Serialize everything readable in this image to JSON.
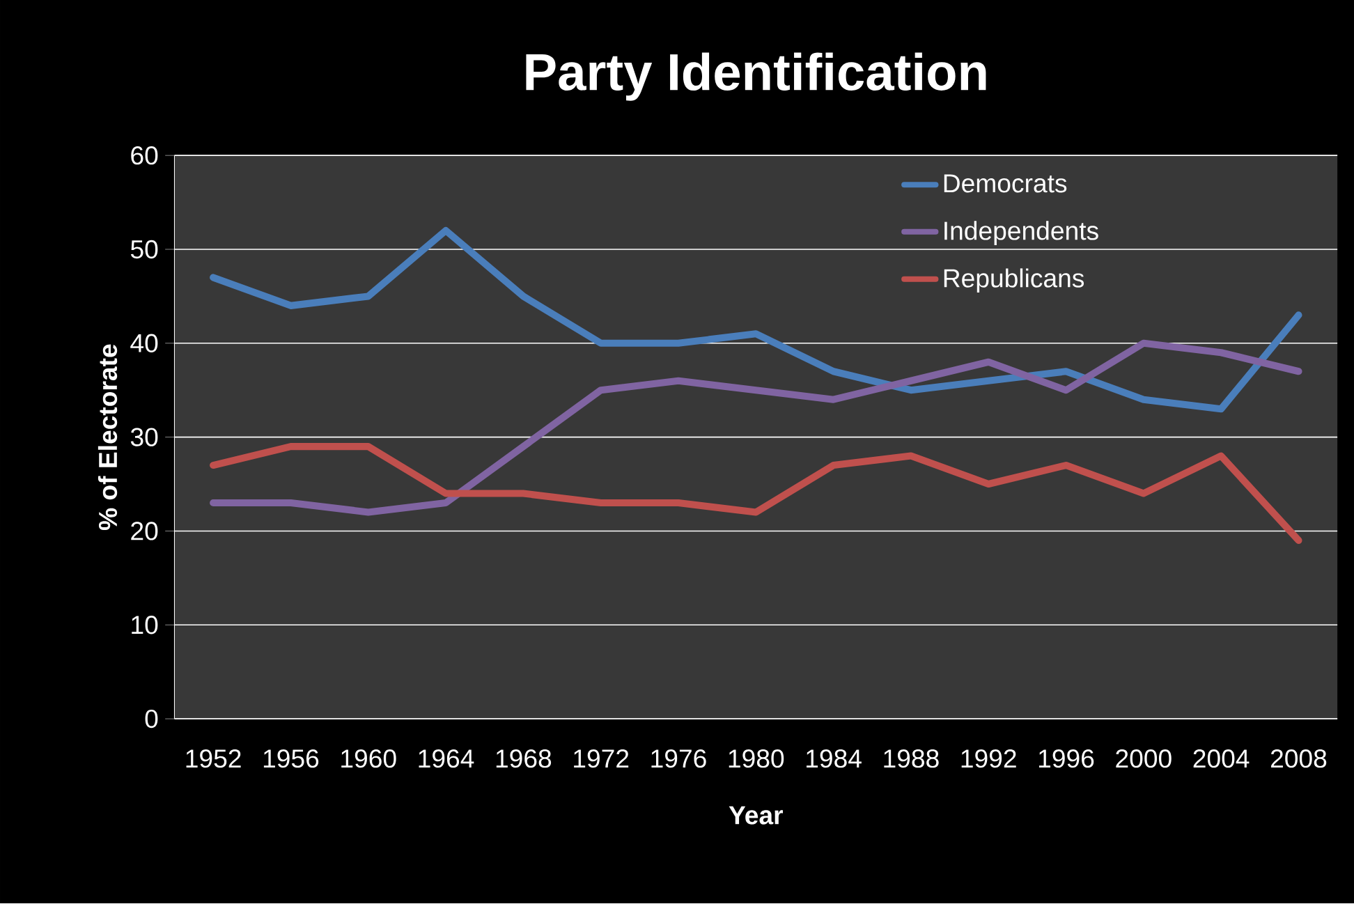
{
  "chart_data": {
    "type": "line",
    "title": "Party Identification",
    "xlabel": "Year",
    "ylabel": "% of Electorate",
    "categories": [
      "1952",
      "1956",
      "1960",
      "1964",
      "1968",
      "1972",
      "1976",
      "1980",
      "1984",
      "1988",
      "1992",
      "1996",
      "2000",
      "2004",
      "2008"
    ],
    "series": [
      {
        "name": "Democrats",
        "color": "#4a7ebb",
        "values": [
          47,
          44,
          45,
          52,
          45,
          40,
          40,
          41,
          37,
          35,
          36,
          37,
          34,
          33,
          43
        ]
      },
      {
        "name": "Independents",
        "color": "#8064a2",
        "values": [
          23,
          23,
          22,
          23,
          29,
          35,
          36,
          35,
          34,
          36,
          38,
          35,
          40,
          39,
          37
        ]
      },
      {
        "name": "Republicans",
        "color": "#c0504d",
        "values": [
          27,
          29,
          29,
          24,
          24,
          23,
          23,
          22,
          27,
          28,
          25,
          27,
          24,
          28,
          19
        ]
      }
    ],
    "ylim": [
      0,
      60
    ],
    "yticks": [
      0,
      10,
      20,
      30,
      40,
      50,
      60
    ],
    "grid": "y",
    "legend": "top right",
    "marker": "none",
    "line_style": "solid"
  }
}
